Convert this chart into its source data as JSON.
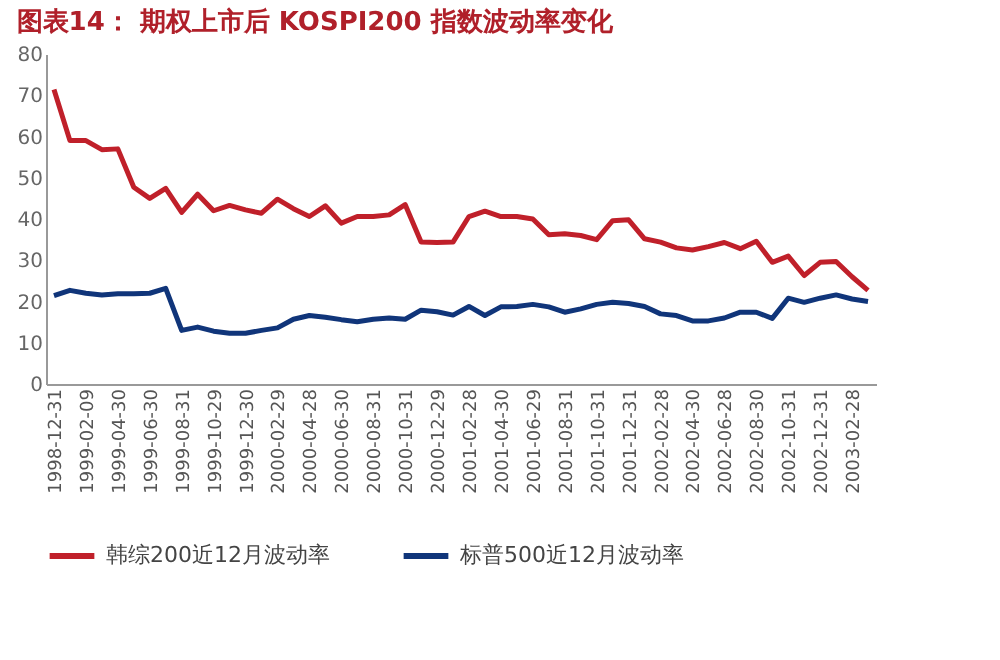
{
  "chart_data": {
    "type": "line",
    "title": "图表14：  期权上市后 KOSPI200 指数波动率变化",
    "categories": [
      "1998-12-31",
      null,
      "1999-02-09",
      null,
      "1999-04-30",
      null,
      "1999-06-30",
      null,
      "1999-08-31",
      null,
      "1999-10-29",
      null,
      "1999-12-30",
      null,
      "2000-02-29",
      null,
      "2000-04-28",
      null,
      "2000-06-30",
      null,
      "2000-08-31",
      null,
      "2000-10-31",
      null,
      "2000-12-29",
      null,
      "2001-02-28",
      null,
      "2001-04-30",
      null,
      "2001-06-29",
      null,
      "2001-08-31",
      null,
      "2001-10-31",
      null,
      "2001-12-31",
      null,
      "2002-02-28",
      null,
      "2002-04-30",
      null,
      "2002-06-28",
      null,
      "2002-08-30",
      null,
      "2002-10-31",
      null,
      "2002-12-31",
      null,
      "2003-02-28",
      null
    ],
    "series": [
      {
        "name": "韩综200近12月波动率",
        "color": "#c0202a",
        "values": [
          71.4,
          59,
          59,
          56.8,
          57,
          47.7,
          45,
          47.4,
          41.6,
          46,
          42,
          43.3,
          42.2,
          41.4,
          44.8,
          42.5,
          40.6,
          43.2,
          39,
          40.6,
          40.6,
          41,
          43.5,
          34.4,
          34.3,
          34.4,
          40.6,
          41.9,
          40.6,
          40.6,
          40,
          36.2,
          36.4,
          36,
          35,
          39.6,
          39.8,
          35.2,
          34.4,
          33,
          32.5,
          33.3,
          34.3,
          32.8,
          34.6,
          29.5,
          31,
          26.3,
          29.5,
          29.7,
          26,
          22.7
        ]
      },
      {
        "name": "标普500近12月波动率",
        "color": "#10357a",
        "values": [
          21.4,
          22.7,
          22,
          21.6,
          21.9,
          21.9,
          22,
          23.2,
          13,
          13.8,
          12.8,
          12.3,
          12.3,
          13,
          13.6,
          15.7,
          16.6,
          16.2,
          15.6,
          15.1,
          15.7,
          16,
          15.7,
          17.9,
          17.5,
          16.7,
          18.8,
          16.6,
          18.7,
          18.8,
          19.3,
          18.7,
          17.4,
          18.2,
          19.3,
          19.8,
          19.5,
          18.8,
          17,
          16.6,
          15.3,
          15.3,
          16,
          17.4,
          17.4,
          15.9,
          20.8,
          19.8,
          20.8,
          21.6,
          20.6,
          20
        ]
      }
    ],
    "ylim": [
      0,
      80
    ],
    "yticks": [
      0,
      10,
      20,
      30,
      40,
      50,
      60,
      70,
      80
    ],
    "grid": false,
    "legend": "bottom",
    "marker": "none",
    "line_style": "solid"
  }
}
